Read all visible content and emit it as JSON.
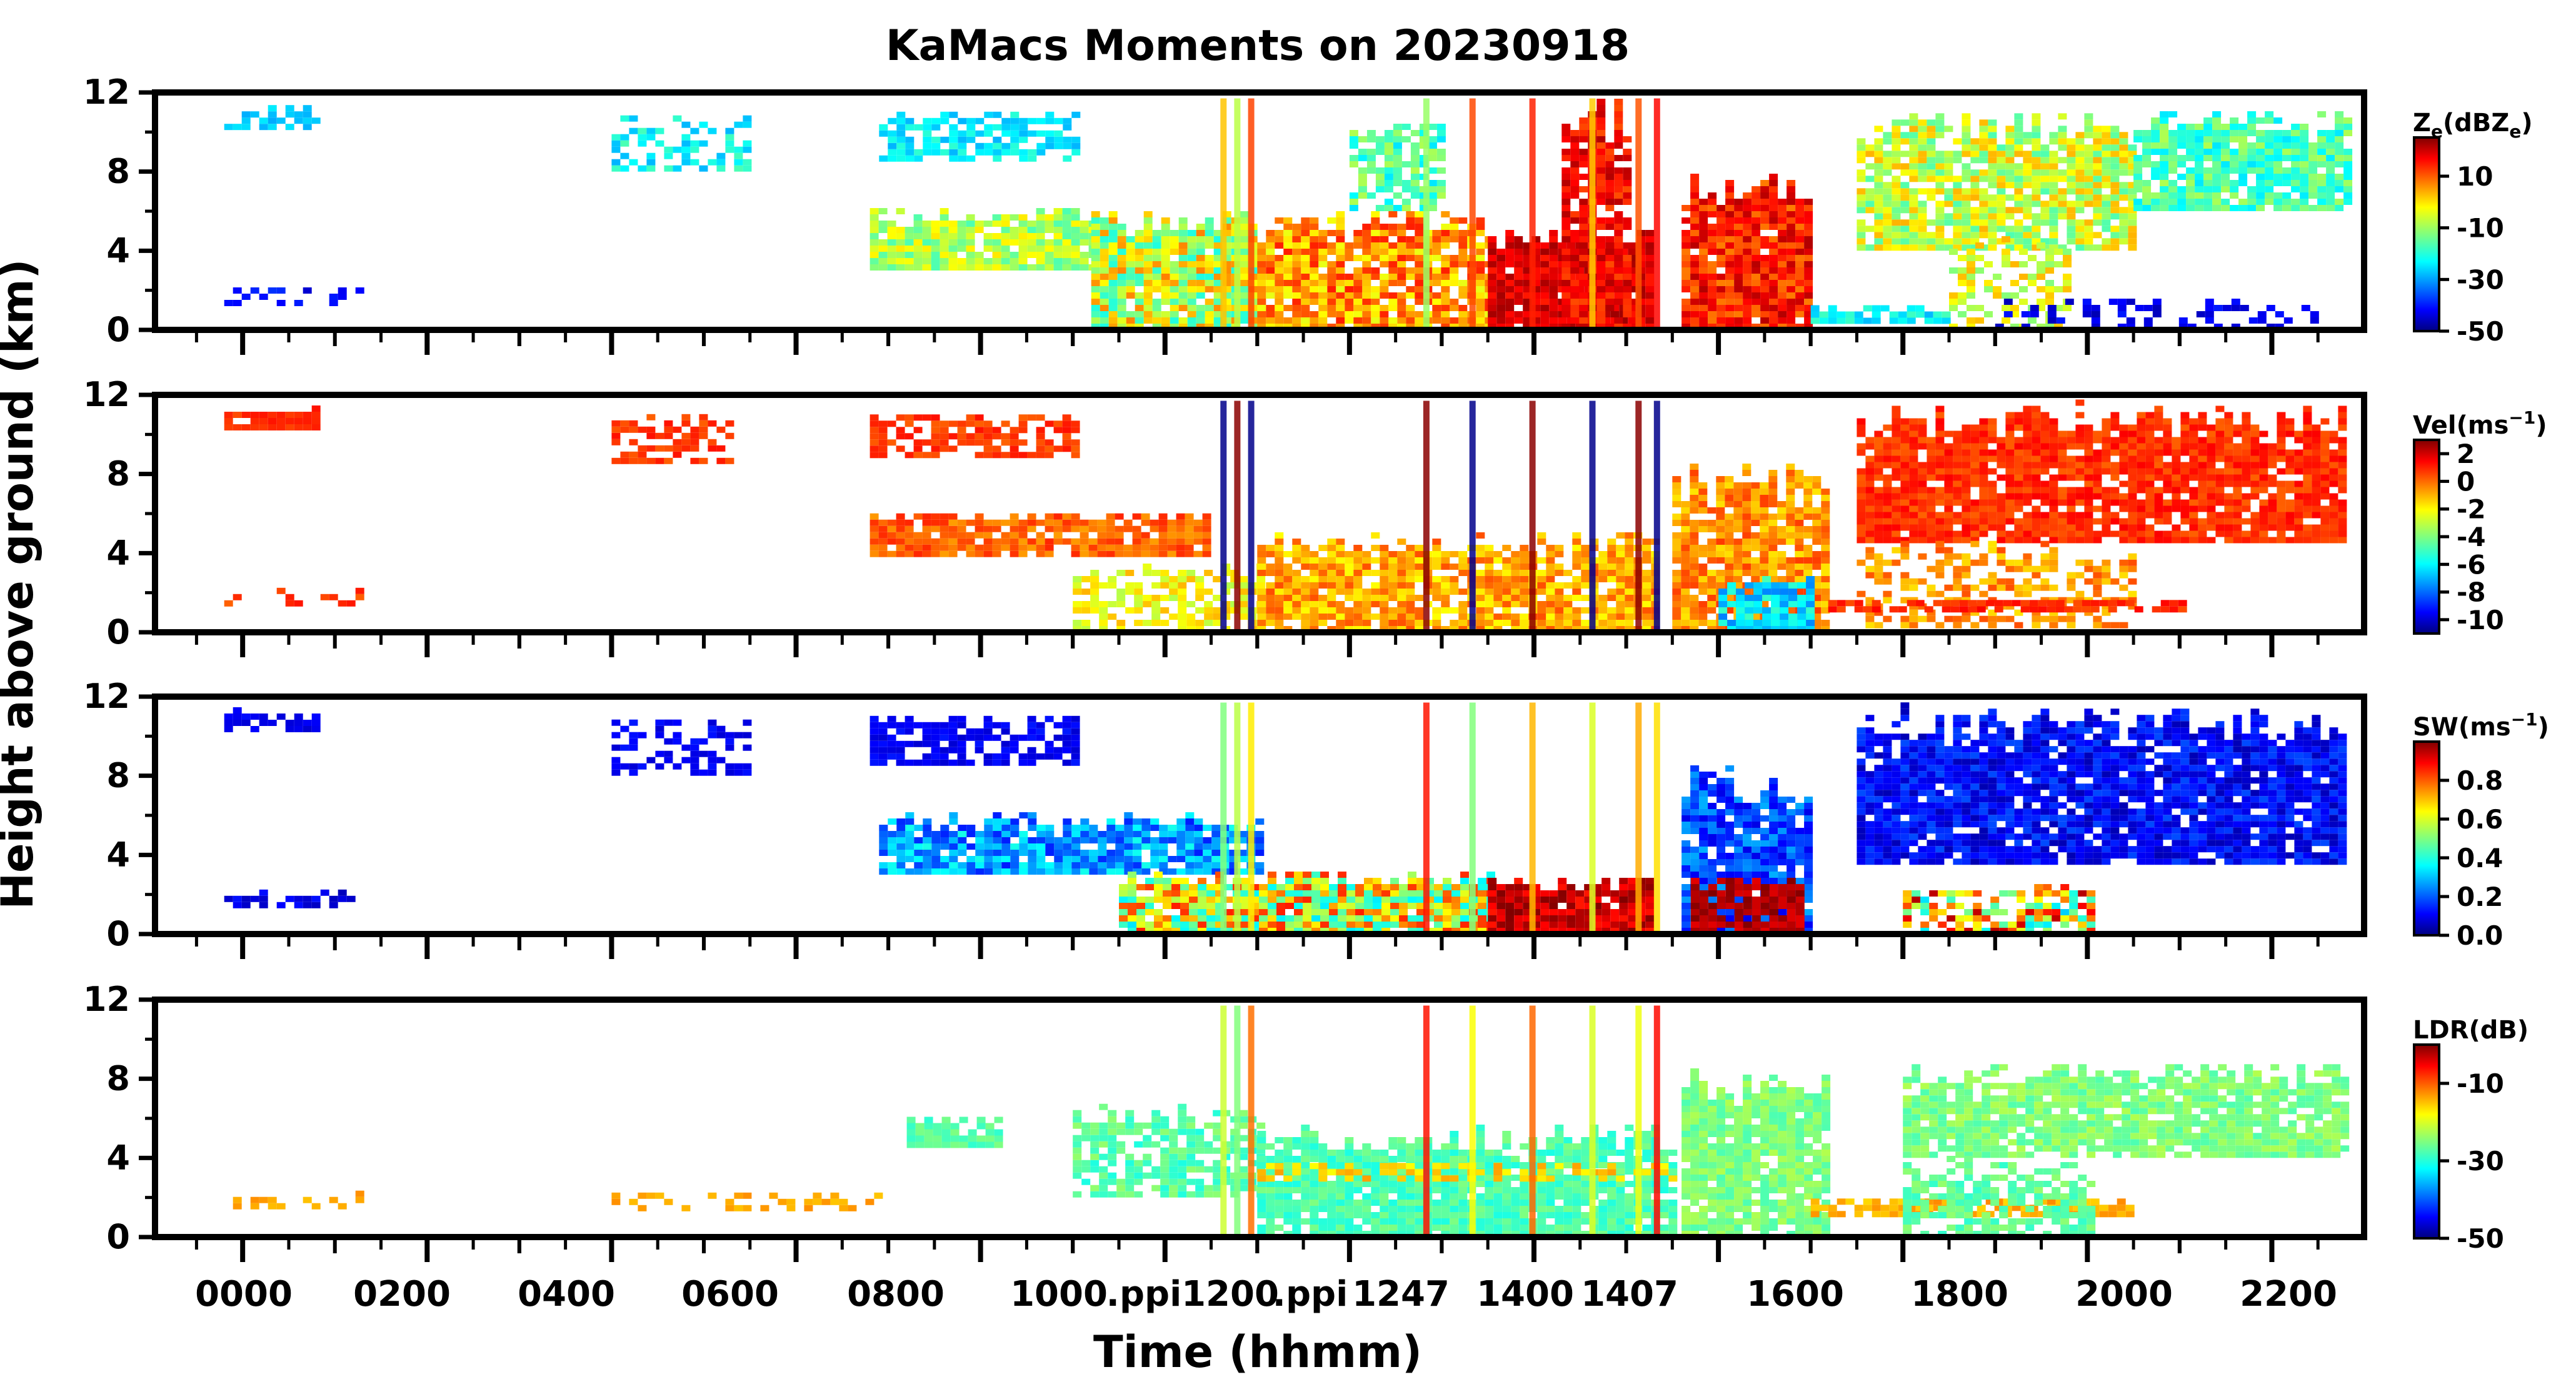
{
  "chart_data": {
    "type": "heatmap",
    "title": "KaMacs Moments on 20230918",
    "xlabel": "Time (hhmm)",
    "ylabel": "Height above ground (km)",
    "x_tick_labels": [
      "0000",
      "0200",
      "0400",
      "0600",
      "0800",
      "1000",
      ".ppi",
      "1200",
      ".ppi",
      "1247",
      "1400",
      "1407",
      "1600",
      "1800",
      "2000",
      "2200"
    ],
    "xlim_hours": [
      -0.95,
      23.0
    ],
    "panels": [
      {
        "name": "reflectivity",
        "colorbar_label": "Ze(dBZe)",
        "colorbar_label_main": "Z",
        "colorbar_label_sub": "e",
        "colorbar_label_rest": "(dBZ",
        "colorbar_label_sub2": "e",
        "colorbar_label_end": ")",
        "cbar_range": [
          -50,
          25
        ],
        "cbar_ticks": [
          "10",
          "-10",
          "-30",
          "-50"
        ],
        "cbar_tick_values": [
          10,
          -10,
          -30,
          -50
        ],
        "ylim": [
          0,
          12
        ],
        "yticks": [
          "0",
          "4",
          "8",
          "12"
        ],
        "ytick_values": [
          0,
          4,
          8,
          12
        ]
      },
      {
        "name": "velocity",
        "colorbar_label": "Vel(ms⁻¹)",
        "colorbar_label_main": "Vel(ms",
        "colorbar_label_sup": "−1",
        "colorbar_label_end": ")",
        "cbar_range": [
          -11,
          3
        ],
        "cbar_ticks": [
          "2",
          "0",
          "-2",
          "-4",
          "-6",
          "-8",
          "-10"
        ],
        "cbar_tick_values": [
          2,
          0,
          -2,
          -4,
          -6,
          -8,
          -10
        ],
        "ylim": [
          0,
          12
        ],
        "yticks": [
          "0",
          "4",
          "8",
          "12"
        ],
        "ytick_values": [
          0,
          4,
          8,
          12
        ]
      },
      {
        "name": "spectrum-width",
        "colorbar_label": "SW(ms⁻¹)",
        "colorbar_label_main": "SW(ms",
        "colorbar_label_sup": "−1",
        "colorbar_label_end": ")",
        "cbar_range": [
          0,
          1
        ],
        "cbar_ticks": [
          "0.8",
          "0.6",
          "0.4",
          "0.2",
          "0.0"
        ],
        "cbar_tick_values": [
          0.8,
          0.6,
          0.4,
          0.2,
          0.0
        ],
        "ylim": [
          0,
          12
        ],
        "yticks": [
          "0",
          "4",
          "8",
          "12"
        ],
        "ytick_values": [
          0,
          4,
          8,
          12
        ]
      },
      {
        "name": "ldr",
        "colorbar_label": "LDR(dB)",
        "colorbar_label_main": "LDR(dB)",
        "cbar_range": [
          -50,
          0
        ],
        "cbar_ticks": [
          "-10",
          "-30",
          "-50"
        ],
        "cbar_tick_values": [
          -10,
          -30,
          -50
        ],
        "ylim": [
          0,
          12
        ],
        "yticks": [
          "0",
          "4",
          "8",
          "12"
        ],
        "ytick_values": [
          0,
          4,
          8,
          12
        ]
      }
    ]
  }
}
